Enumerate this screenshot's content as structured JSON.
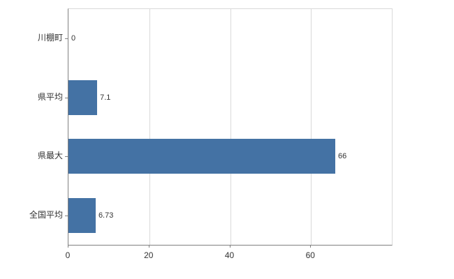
{
  "chart_data": {
    "type": "bar",
    "orientation": "horizontal",
    "title": "",
    "xlabel": "",
    "ylabel": "",
    "categories": [
      "川棚町",
      "県平均",
      "県最大",
      "全国平均"
    ],
    "values": [
      0,
      7.1,
      66,
      6.73
    ],
    "value_labels": [
      "0",
      "7.1",
      "66",
      "6.73"
    ],
    "xlim": [
      0,
      80
    ],
    "xticks": [
      0,
      20,
      40,
      60
    ],
    "xtick_labels": [
      "0",
      "20",
      "40",
      "60"
    ],
    "grid": true,
    "legend": false,
    "bar_color": "#4472a4",
    "axis_color": "#808080",
    "gridline_color": "#d9d9d9",
    "text_color": "#333333",
    "background_color": "#ffffff"
  }
}
